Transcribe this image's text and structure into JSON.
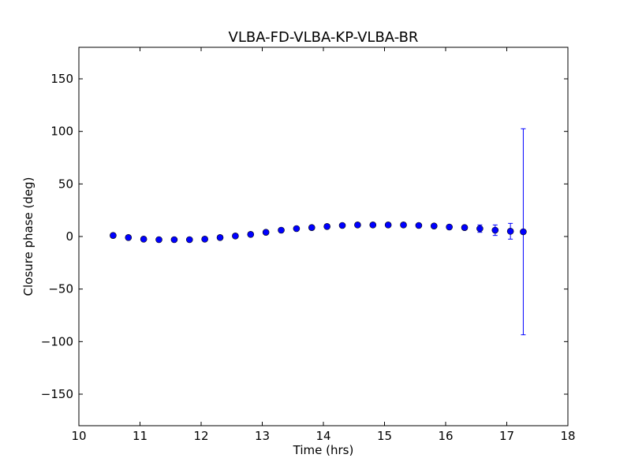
{
  "chart_data": {
    "type": "scatter",
    "title": "VLBA-FD-VLBA-KP-VLBA-BR",
    "xlabel": "Time (hrs)",
    "ylabel": "Closure phase (deg)",
    "xlim": [
      10,
      18
    ],
    "ylim": [
      -180,
      180
    ],
    "x_ticks": [
      "10",
      "11",
      "12",
      "13",
      "14",
      "15",
      "16",
      "17",
      "18"
    ],
    "y_ticks": [
      "−150",
      "−100",
      "−50",
      "0",
      "50",
      "100",
      "150"
    ],
    "grid": false,
    "marker_color": "#0000ff",
    "errorbar_color": "#0000ff",
    "points": [
      {
        "x": 10.56,
        "y": 1.0,
        "err": 2.0
      },
      {
        "x": 10.81,
        "y": -1.0,
        "err": 1.5
      },
      {
        "x": 11.06,
        "y": -2.5,
        "err": 1.5
      },
      {
        "x": 11.31,
        "y": -3.0,
        "err": 1.5
      },
      {
        "x": 11.56,
        "y": -3.0,
        "err": 1.5
      },
      {
        "x": 11.81,
        "y": -3.0,
        "err": 1.5
      },
      {
        "x": 12.06,
        "y": -2.5,
        "err": 1.5
      },
      {
        "x": 12.31,
        "y": -1.0,
        "err": 1.5
      },
      {
        "x": 12.56,
        "y": 0.5,
        "err": 1.5
      },
      {
        "x": 12.81,
        "y": 2.0,
        "err": 1.5
      },
      {
        "x": 13.06,
        "y": 4.0,
        "err": 1.5
      },
      {
        "x": 13.31,
        "y": 6.0,
        "err": 1.5
      },
      {
        "x": 13.56,
        "y": 7.5,
        "err": 1.5
      },
      {
        "x": 13.81,
        "y": 8.5,
        "err": 1.5
      },
      {
        "x": 14.06,
        "y": 9.5,
        "err": 1.5
      },
      {
        "x": 14.31,
        "y": 10.5,
        "err": 1.5
      },
      {
        "x": 14.56,
        "y": 11.0,
        "err": 1.5
      },
      {
        "x": 14.81,
        "y": 11.0,
        "err": 1.5
      },
      {
        "x": 15.06,
        "y": 11.0,
        "err": 1.5
      },
      {
        "x": 15.31,
        "y": 11.0,
        "err": 1.5
      },
      {
        "x": 15.56,
        "y": 10.5,
        "err": 1.5
      },
      {
        "x": 15.81,
        "y": 10.0,
        "err": 1.5
      },
      {
        "x": 16.06,
        "y": 9.0,
        "err": 1.5
      },
      {
        "x": 16.31,
        "y": 8.5,
        "err": 2.0
      },
      {
        "x": 16.56,
        "y": 7.5,
        "err": 3.5
      },
      {
        "x": 16.81,
        "y": 6.0,
        "err": 5.0
      },
      {
        "x": 17.06,
        "y": 5.0,
        "err": 7.5
      },
      {
        "x": 17.27,
        "y": 4.5,
        "err": 98.0
      }
    ]
  }
}
